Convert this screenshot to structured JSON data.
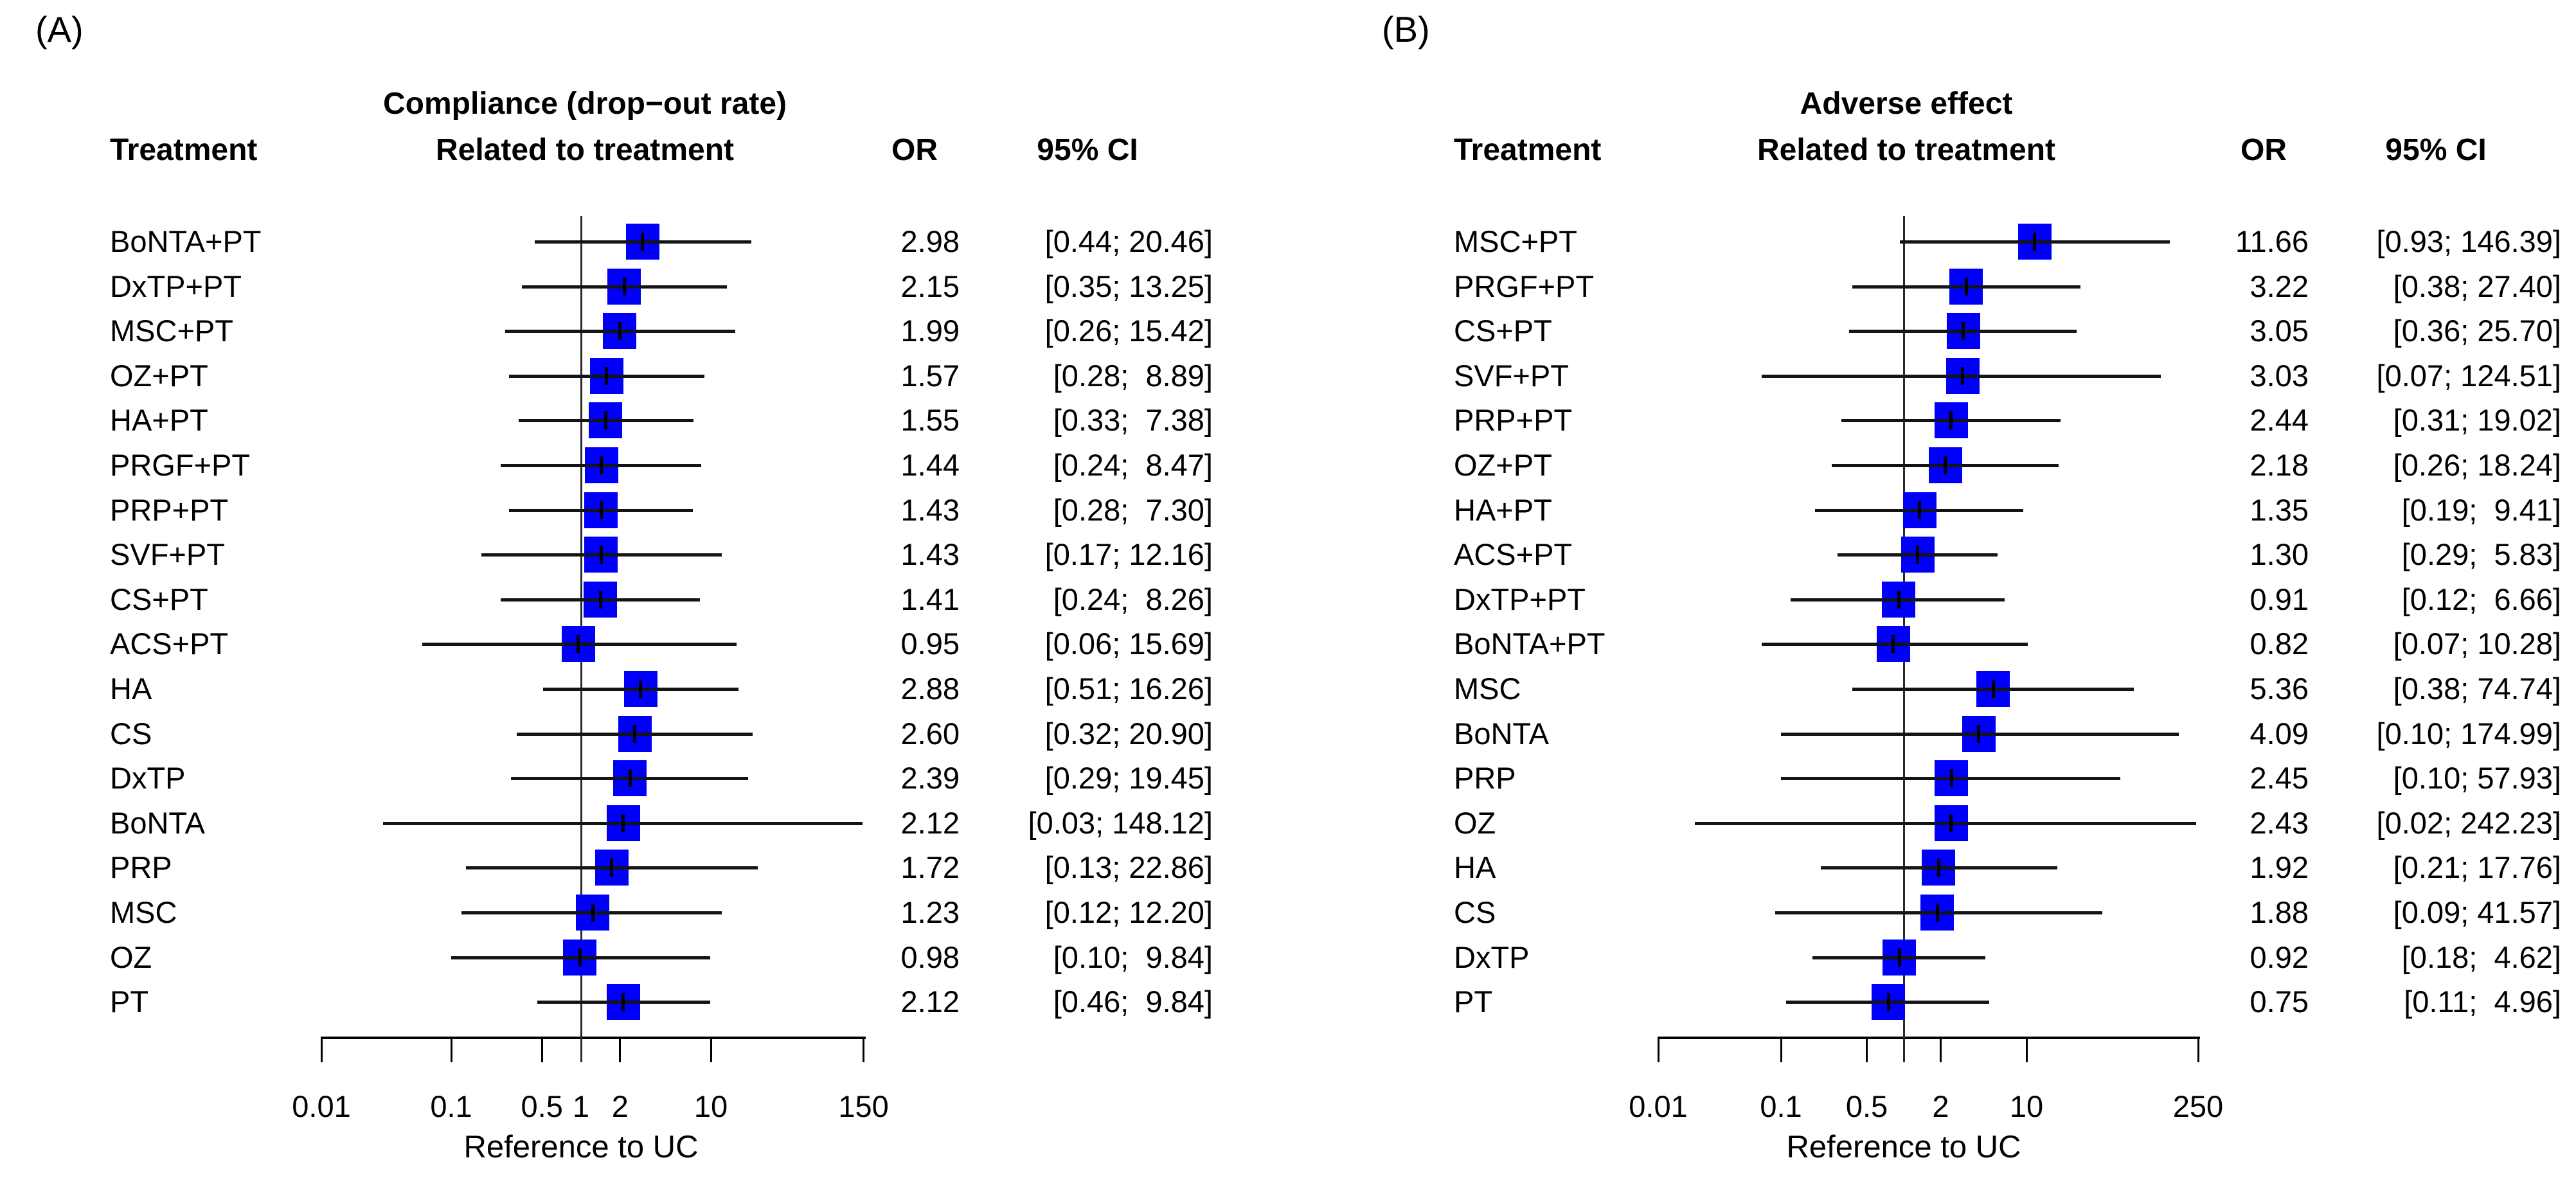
{
  "colors": {
    "marker": "#0000FA",
    "line": "#000000",
    "text": "#000000",
    "background": "#FFFFFF"
  },
  "chart_data": [
    {
      "type": "scatter",
      "subtype": "forest-plot",
      "panel_label": "(A)",
      "title": "Compliance (drop−out rate)",
      "subtitle": "Related to treatment",
      "columns": {
        "treatment": "Treatment",
        "or": "OR",
        "ci": "95% CI"
      },
      "xlabel": "Reference to UC",
      "xscale": "log",
      "xlim": [
        0.01,
        150
      ],
      "reference_line": 1,
      "grid": false,
      "xticks": [
        {
          "value": 0.01,
          "label": "0.01"
        },
        {
          "value": 0.1,
          "label": "0.1"
        },
        {
          "value": 0.5,
          "label": "0.5"
        },
        {
          "value": 1,
          "label": "1"
        },
        {
          "value": 2,
          "label": "2"
        },
        {
          "value": 10,
          "label": "10"
        },
        {
          "value": 150,
          "label": "150"
        }
      ],
      "rows": [
        {
          "treatment": "BoNTA+PT",
          "or": 2.98,
          "ci_low": 0.44,
          "ci_high": 20.46,
          "or_text": "2.98",
          "ci_text": "[0.44; 20.46]"
        },
        {
          "treatment": "DxTP+PT",
          "or": 2.15,
          "ci_low": 0.35,
          "ci_high": 13.25,
          "or_text": "2.15",
          "ci_text": "[0.35; 13.25]"
        },
        {
          "treatment": "MSC+PT",
          "or": 1.99,
          "ci_low": 0.26,
          "ci_high": 15.42,
          "or_text": "1.99",
          "ci_text": "[0.26; 15.42]"
        },
        {
          "treatment": "OZ+PT",
          "or": 1.57,
          "ci_low": 0.28,
          "ci_high": 8.89,
          "or_text": "1.57",
          "ci_text": "[0.28;  8.89]"
        },
        {
          "treatment": "HA+PT",
          "or": 1.55,
          "ci_low": 0.33,
          "ci_high": 7.38,
          "or_text": "1.55",
          "ci_text": "[0.33;  7.38]"
        },
        {
          "treatment": "PRGF+PT",
          "or": 1.44,
          "ci_low": 0.24,
          "ci_high": 8.47,
          "or_text": "1.44",
          "ci_text": "[0.24;  8.47]"
        },
        {
          "treatment": "PRP+PT",
          "or": 1.43,
          "ci_low": 0.28,
          "ci_high": 7.3,
          "or_text": "1.43",
          "ci_text": "[0.28;  7.30]"
        },
        {
          "treatment": "SVF+PT",
          "or": 1.43,
          "ci_low": 0.17,
          "ci_high": 12.16,
          "or_text": "1.43",
          "ci_text": "[0.17; 12.16]"
        },
        {
          "treatment": "CS+PT",
          "or": 1.41,
          "ci_low": 0.24,
          "ci_high": 8.26,
          "or_text": "1.41",
          "ci_text": "[0.24;  8.26]"
        },
        {
          "treatment": "ACS+PT",
          "or": 0.95,
          "ci_low": 0.06,
          "ci_high": 15.69,
          "or_text": "0.95",
          "ci_text": "[0.06; 15.69]"
        },
        {
          "treatment": "HA",
          "or": 2.88,
          "ci_low": 0.51,
          "ci_high": 16.26,
          "or_text": "2.88",
          "ci_text": "[0.51; 16.26]"
        },
        {
          "treatment": "CS",
          "or": 2.6,
          "ci_low": 0.32,
          "ci_high": 20.9,
          "or_text": "2.60",
          "ci_text": "[0.32; 20.90]"
        },
        {
          "treatment": "DxTP",
          "or": 2.39,
          "ci_low": 0.29,
          "ci_high": 19.45,
          "or_text": "2.39",
          "ci_text": "[0.29; 19.45]"
        },
        {
          "treatment": "BoNTA",
          "or": 2.12,
          "ci_low": 0.03,
          "ci_high": 148.12,
          "or_text": "2.12",
          "ci_text": "[0.03; 148.12]"
        },
        {
          "treatment": "PRP",
          "or": 1.72,
          "ci_low": 0.13,
          "ci_high": 22.86,
          "or_text": "1.72",
          "ci_text": "[0.13; 22.86]"
        },
        {
          "treatment": "MSC",
          "or": 1.23,
          "ci_low": 0.12,
          "ci_high": 12.2,
          "or_text": "1.23",
          "ci_text": "[0.12; 12.20]"
        },
        {
          "treatment": "OZ",
          "or": 0.98,
          "ci_low": 0.1,
          "ci_high": 9.84,
          "or_text": "0.98",
          "ci_text": "[0.10;  9.84]"
        },
        {
          "treatment": "PT",
          "or": 2.12,
          "ci_low": 0.46,
          "ci_high": 9.84,
          "or_text": "2.12",
          "ci_text": "[0.46;  9.84]"
        }
      ]
    },
    {
      "type": "scatter",
      "subtype": "forest-plot",
      "panel_label": "(B)",
      "title": "Adverse effect",
      "subtitle": "Related to treatment",
      "columns": {
        "treatment": "Treatment",
        "or": "OR",
        "ci": "95% CI"
      },
      "xlabel": "Reference to UC",
      "xscale": "log",
      "xlim": [
        0.01,
        250
      ],
      "reference_line": 1,
      "grid": false,
      "xticks": [
        {
          "value": 0.01,
          "label": "0.01"
        },
        {
          "value": 0.1,
          "label": "0.1"
        },
        {
          "value": 0.5,
          "label": "0.5"
        },
        {
          "value": 1,
          "label": ""
        },
        {
          "value": 2,
          "label": "2"
        },
        {
          "value": 10,
          "label": "10"
        },
        {
          "value": 250,
          "label": "250"
        }
      ],
      "rows": [
        {
          "treatment": "MSC+PT",
          "or": 11.66,
          "ci_low": 0.93,
          "ci_high": 146.39,
          "or_text": "11.66",
          "ci_text": "[0.93; 146.39]"
        },
        {
          "treatment": "PRGF+PT",
          "or": 3.22,
          "ci_low": 0.38,
          "ci_high": 27.4,
          "or_text": "3.22",
          "ci_text": "[0.38; 27.40]"
        },
        {
          "treatment": "CS+PT",
          "or": 3.05,
          "ci_low": 0.36,
          "ci_high": 25.7,
          "or_text": "3.05",
          "ci_text": "[0.36; 25.70]"
        },
        {
          "treatment": "SVF+PT",
          "or": 3.03,
          "ci_low": 0.07,
          "ci_high": 124.51,
          "or_text": "3.03",
          "ci_text": "[0.07; 124.51]"
        },
        {
          "treatment": "PRP+PT",
          "or": 2.44,
          "ci_low": 0.31,
          "ci_high": 19.02,
          "or_text": "2.44",
          "ci_text": "[0.31; 19.02]"
        },
        {
          "treatment": "OZ+PT",
          "or": 2.18,
          "ci_low": 0.26,
          "ci_high": 18.24,
          "or_text": "2.18",
          "ci_text": "[0.26; 18.24]"
        },
        {
          "treatment": "HA+PT",
          "or": 1.35,
          "ci_low": 0.19,
          "ci_high": 9.41,
          "or_text": "1.35",
          "ci_text": "[0.19;  9.41]"
        },
        {
          "treatment": "ACS+PT",
          "or": 1.3,
          "ci_low": 0.29,
          "ci_high": 5.83,
          "or_text": "1.30",
          "ci_text": "[0.29;  5.83]"
        },
        {
          "treatment": "DxTP+PT",
          "or": 0.91,
          "ci_low": 0.12,
          "ci_high": 6.66,
          "or_text": "0.91",
          "ci_text": "[0.12;  6.66]"
        },
        {
          "treatment": "BoNTA+PT",
          "or": 0.82,
          "ci_low": 0.07,
          "ci_high": 10.28,
          "or_text": "0.82",
          "ci_text": "[0.07; 10.28]"
        },
        {
          "treatment": "MSC",
          "or": 5.36,
          "ci_low": 0.38,
          "ci_high": 74.74,
          "or_text": "5.36",
          "ci_text": "[0.38; 74.74]"
        },
        {
          "treatment": "BoNTA",
          "or": 4.09,
          "ci_low": 0.1,
          "ci_high": 174.99,
          "or_text": "4.09",
          "ci_text": "[0.10; 174.99]"
        },
        {
          "treatment": "PRP",
          "or": 2.45,
          "ci_low": 0.1,
          "ci_high": 57.93,
          "or_text": "2.45",
          "ci_text": "[0.10; 57.93]"
        },
        {
          "treatment": "OZ",
          "or": 2.43,
          "ci_low": 0.02,
          "ci_high": 242.23,
          "or_text": "2.43",
          "ci_text": "[0.02; 242.23]"
        },
        {
          "treatment": "HA",
          "or": 1.92,
          "ci_low": 0.21,
          "ci_high": 17.76,
          "or_text": "1.92",
          "ci_text": "[0.21; 17.76]"
        },
        {
          "treatment": "CS",
          "or": 1.88,
          "ci_low": 0.09,
          "ci_high": 41.57,
          "or_text": "1.88",
          "ci_text": "[0.09; 41.57]"
        },
        {
          "treatment": "DxTP",
          "or": 0.92,
          "ci_low": 0.18,
          "ci_high": 4.62,
          "or_text": "0.92",
          "ci_text": "[0.18;  4.62]"
        },
        {
          "treatment": "PT",
          "or": 0.75,
          "ci_low": 0.11,
          "ci_high": 4.96,
          "or_text": "0.75",
          "ci_text": "[0.11;  4.96]"
        }
      ]
    }
  ]
}
